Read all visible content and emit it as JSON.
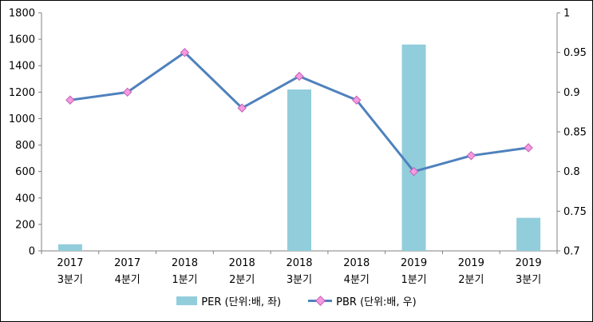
{
  "chart": {
    "background": "#ffffff",
    "frame_border": "#000000",
    "axis_color": "#808080",
    "text_color": "#000000",
    "bar_color": "#92CDDC",
    "line_color": "#4F81BD",
    "marker_fill": "#F49BE0",
    "marker_stroke": "#C45FB8"
  },
  "chart_data": {
    "type": "bar+line combo",
    "title": "",
    "categories": [
      {
        "year": "2017",
        "quarter": "3분기"
      },
      {
        "year": "2017",
        "quarter": "4분기"
      },
      {
        "year": "2018",
        "quarter": "1분기"
      },
      {
        "year": "2018",
        "quarter": "2분기"
      },
      {
        "year": "2018",
        "quarter": "3분기"
      },
      {
        "year": "2018",
        "quarter": "4분기"
      },
      {
        "year": "2019",
        "quarter": "1분기"
      },
      {
        "year": "2019",
        "quarter": "2분기"
      },
      {
        "year": "2019",
        "quarter": "3분기"
      }
    ],
    "series": [
      {
        "name": "PER (단위:배, 좌)",
        "type": "bar",
        "axis": "left",
        "values": [
          50,
          0,
          0,
          0,
          1220,
          0,
          1560,
          0,
          250
        ]
      },
      {
        "name": "PBR (단위:배, 우)",
        "type": "line",
        "axis": "right",
        "values": [
          0.89,
          0.9,
          0.95,
          0.88,
          0.92,
          0.89,
          0.8,
          0.82,
          0.83
        ]
      }
    ],
    "left_axis": {
      "min": 0,
      "max": 1800,
      "ticks": [
        0,
        200,
        400,
        600,
        800,
        1000,
        1200,
        1400,
        1600,
        1800
      ]
    },
    "right_axis": {
      "min": 0.7,
      "max": 1.0,
      "ticks": [
        0.7,
        0.75,
        0.8,
        0.85,
        0.9,
        0.95,
        1
      ]
    },
    "grid": false,
    "legend_position": "bottom"
  }
}
